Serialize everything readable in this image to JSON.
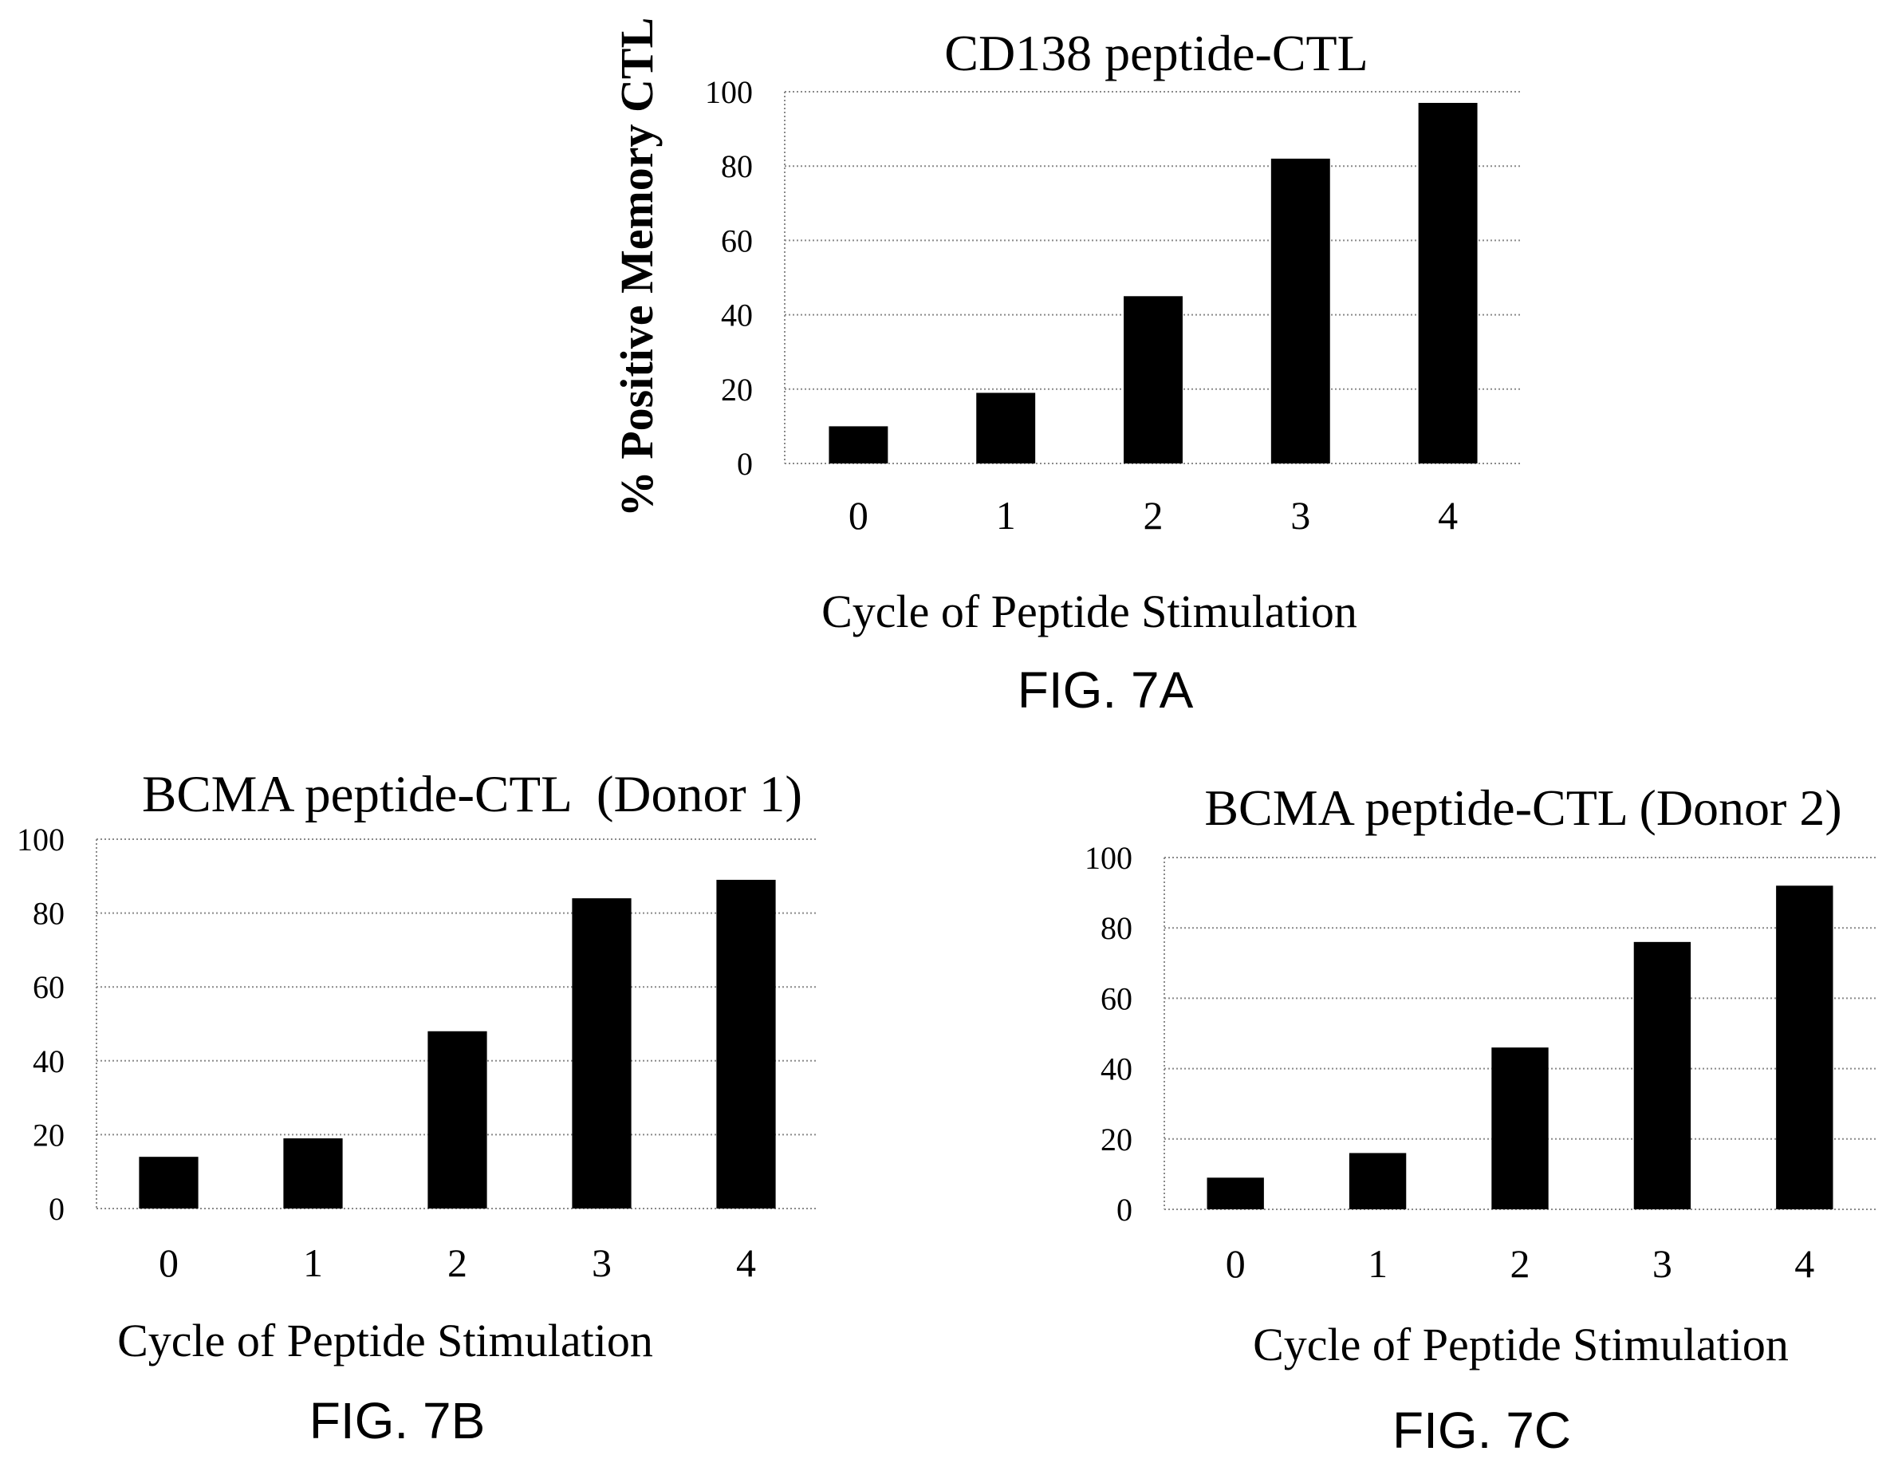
{
  "figure_labels": [
    "FIG. 7A",
    "FIG. 7B",
    "FIG. 7C"
  ],
  "colors": {
    "bar": "#000000",
    "grid": "#8a8a8a"
  },
  "chart_data": [
    {
      "type": "bar",
      "title": "CD138 peptide-CTL",
      "xlabel": "Cycle of Peptide Stimulation",
      "ylabel": "% Positive Memory CTL",
      "categories": [
        "0",
        "1",
        "2",
        "3",
        "4"
      ],
      "values": [
        10,
        19,
        45,
        82,
        97
      ],
      "ylim": [
        0,
        100
      ],
      "yticks": [
        0,
        20,
        40,
        60,
        80,
        100
      ],
      "grid": true,
      "legend": false
    },
    {
      "type": "bar",
      "title": "BCMA peptide-CTL  (Donor 1)",
      "xlabel": "Cycle of Peptide Stimulation",
      "categories": [
        "0",
        "1",
        "2",
        "3",
        "4"
      ],
      "values": [
        14,
        19,
        48,
        84,
        89
      ],
      "ylim": [
        0,
        100
      ],
      "yticks": [
        0,
        20,
        40,
        60,
        80,
        100
      ],
      "grid": true,
      "legend": false
    },
    {
      "type": "bar",
      "title": "BCMA peptide-CTL (Donor 2)",
      "xlabel": "Cycle of Peptide Stimulation",
      "categories": [
        "0",
        "1",
        "2",
        "3",
        "4"
      ],
      "values": [
        9,
        16,
        46,
        76,
        92
      ],
      "ylim": [
        0,
        100
      ],
      "yticks": [
        0,
        20,
        40,
        60,
        80,
        100
      ],
      "grid": true,
      "legend": false
    }
  ]
}
